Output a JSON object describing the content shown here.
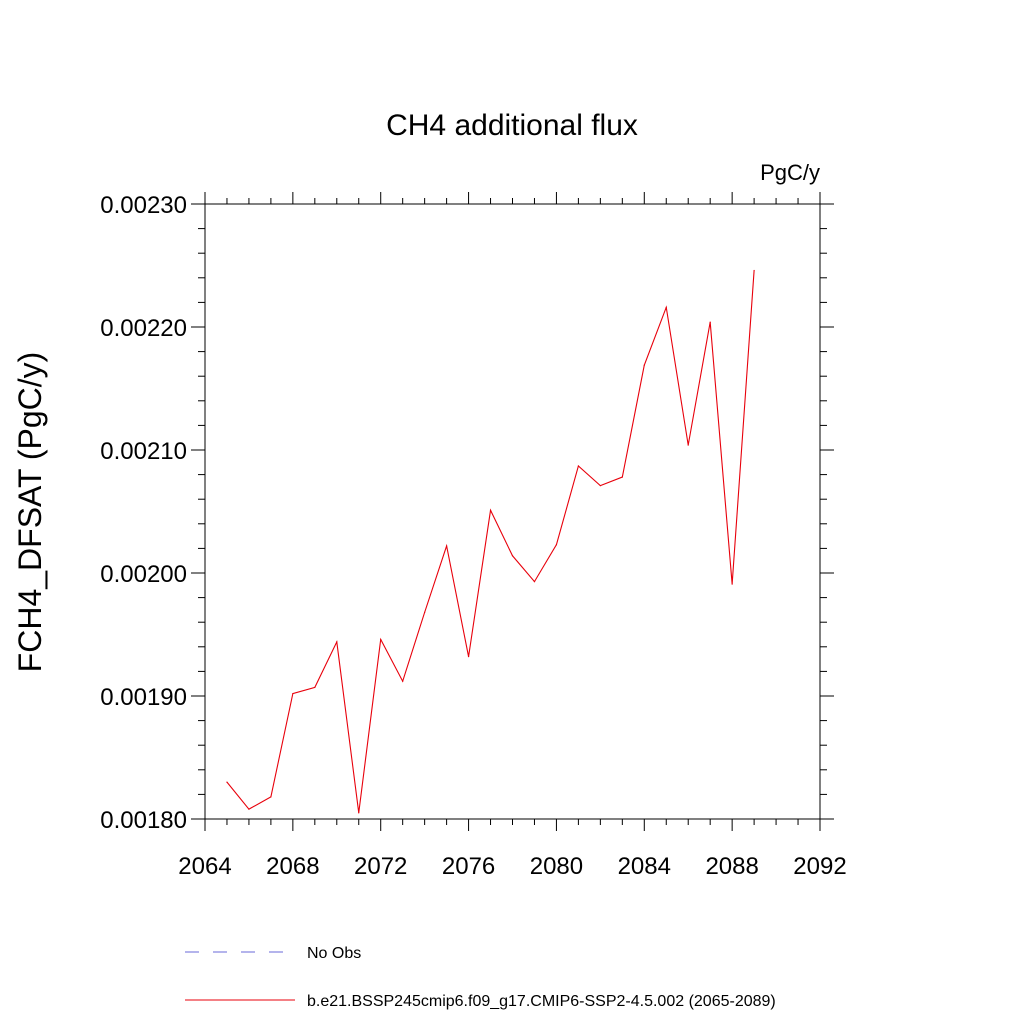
{
  "chart_data": {
    "type": "line",
    "title": "CH4 additional flux",
    "units": "PgC/y",
    "ylabel": "FCH4_DFSAT  (PgC/y)",
    "xlabel": "",
    "xlim": [
      2064,
      2092
    ],
    "ylim": [
      0.0018,
      0.0023
    ],
    "xticks": [
      2064,
      2068,
      2072,
      2076,
      2080,
      2084,
      2088,
      2092
    ],
    "yticks": [
      {
        "value": 0.0018,
        "label": "0.00180"
      },
      {
        "value": 0.0019,
        "label": "0.00190"
      },
      {
        "value": 0.002,
        "label": "0.00200"
      },
      {
        "value": 0.0021,
        "label": "0.00210"
      },
      {
        "value": 0.0022,
        "label": "0.00220"
      },
      {
        "value": 0.0023,
        "label": "0.00230"
      }
    ],
    "grid": false,
    "legend_position": "bottom",
    "series": [
      {
        "name": "No Obs",
        "color": "#6a6ad8",
        "dash": "dashed",
        "x": [],
        "values": []
      },
      {
        "name": "b.e21.BSSP245cmip6.f09_g17.CMIP6-SSP2-4.5.002 (2065-2089)",
        "color": "#e8000b",
        "dash": "solid",
        "x": [
          2065,
          2066,
          2067,
          2068,
          2069,
          2070,
          2071,
          2072,
          2073,
          2074,
          2075,
          2076,
          2077,
          2078,
          2079,
          2080,
          2081,
          2082,
          2083,
          2084,
          2085,
          2086,
          2087,
          2088,
          2089
        ],
        "values": [
          0.00183,
          0.001808,
          0.001818,
          0.001902,
          0.001907,
          0.001944,
          0.001805,
          0.001946,
          0.001912,
          0.001968,
          0.002022,
          0.001932,
          0.002051,
          0.002014,
          0.001993,
          0.002023,
          0.002087,
          0.002071,
          0.002078,
          0.002169,
          0.002216,
          0.002104,
          0.002204,
          0.001991,
          0.002246
        ]
      }
    ]
  }
}
